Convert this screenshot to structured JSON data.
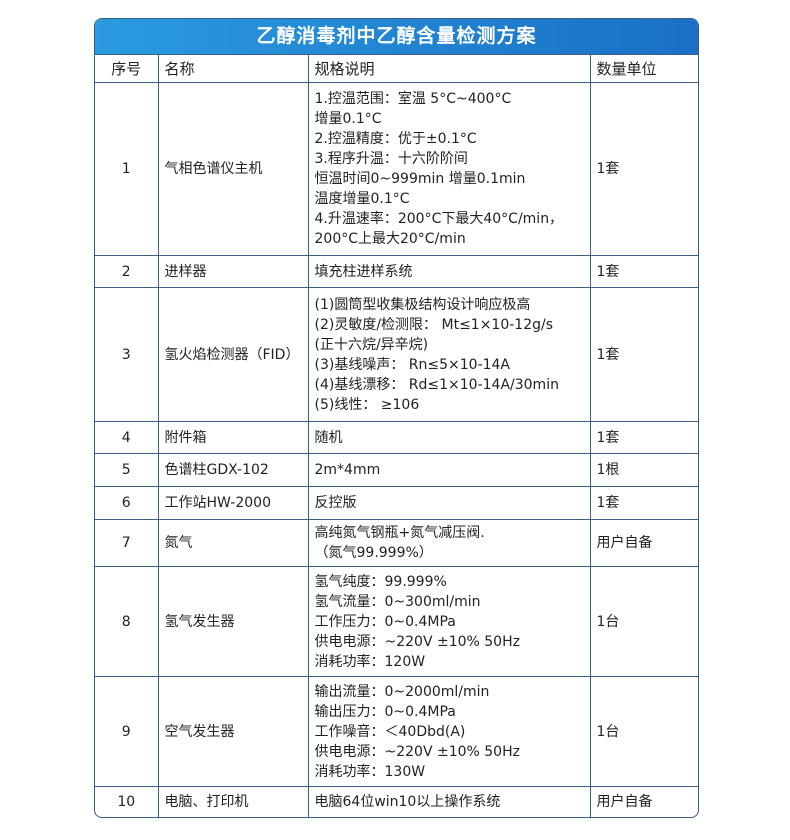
{
  "title": "乙醇消毒剂中乙醇含量检测方案",
  "headers": [
    "序号",
    "名称",
    "规格说明",
    "数量单位"
  ],
  "rows": [
    {
      "no": "1",
      "name": "气相色谱仪主机",
      "spec": [
        "1.控温范围：室温 5°C~400°C",
        "增量0.1°C",
        "2.控温精度：优于±0.1°C",
        "3.程序升温：十六阶阶间",
        "恒温时间0~999min 增量0.1min",
        "温度增量0.1°C",
        "4.升温速率：200°C下最大40°C/min，",
        "200°C上最大20°C/min"
      ],
      "qty": "1套"
    },
    {
      "no": "2",
      "name": "进样器",
      "spec": [
        "填充柱进样系统"
      ],
      "qty": "1套"
    },
    {
      "no": "3",
      "name": "氢火焰检测器（FID）",
      "spec": [
        "(1)圆筒型收集极结构设计响应极高",
        "(2)灵敏度/检测限： Mt≤1×10-12g/s",
        "(正十六烷/异辛烷)",
        "(3)基线噪声： Rn≤5×10-14A",
        "(4)基线漂移： Rd≤1×10-14A/30min",
        "(5)线性： ≥106"
      ],
      "qty": "1套"
    },
    {
      "no": "4",
      "name": "附件箱",
      "spec": [
        "随机"
      ],
      "qty": "1套"
    },
    {
      "no": "5",
      "name": "色谱柱GDX-102",
      "spec": [
        "2m*4mm"
      ],
      "qty": "1根"
    },
    {
      "no": "6",
      "name": "工作站HW-2000",
      "spec": [
        "反控版"
      ],
      "qty": "1套"
    },
    {
      "no": "7",
      "name": "氮气",
      "spec": [
        "高纯氮气钢瓶+氮气减压阀.",
        "（氮气99.999%）"
      ],
      "qty": "用户自备"
    },
    {
      "no": "8",
      "name": "氢气发生器",
      "spec": [
        "氢气纯度：99.999%",
        "氢气流量：0~300ml/min",
        "工作压力：0~0.4MPa",
        "供电电源：~220V ±10% 50Hz",
        "消耗功率：120W"
      ],
      "qty": "1台"
    },
    {
      "no": "9",
      "name": "空气发生器",
      "spec": [
        "输出流量：0~2000ml/min",
        "输出压力：0~0.4MPa",
        "工作噪音：＜40Dbd(A)",
        "供电电源：~220V ±10% 50Hz",
        "消耗功率：130W"
      ],
      "qty": "1台"
    },
    {
      "no": "10",
      "name": "电脑、打印机",
      "spec": [
        "电脑64位win10以上操作系统"
      ],
      "qty": "用户自备"
    }
  ]
}
